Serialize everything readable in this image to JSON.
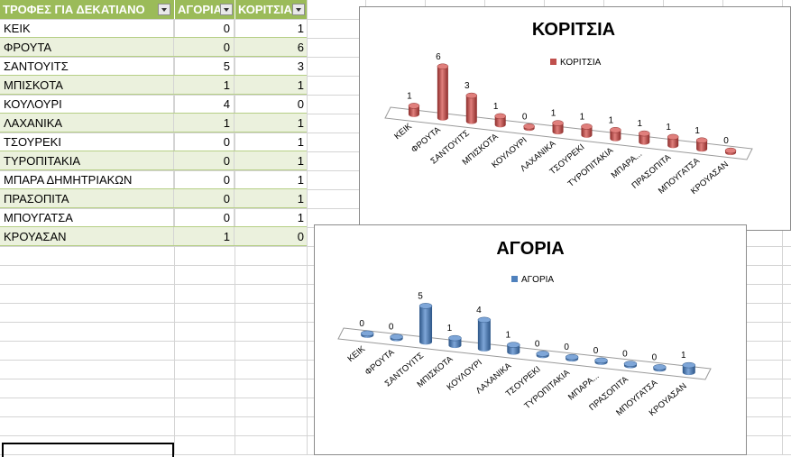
{
  "table": {
    "headers": [
      "ΤΡΟΦΕΣ ΓΙΑ ΔΕΚΑΤΙΑΝΟ",
      "ΑΓΟΡΙΑ",
      "ΚΟΡΙΤΣΙΑ"
    ],
    "rows": [
      {
        "food": "ΚΕΙΚ",
        "boys": "0",
        "girls": "1"
      },
      {
        "food": "ΦΡΟΥΤΑ",
        "boys": "0",
        "girls": "6"
      },
      {
        "food": "ΣΑΝΤΟΥΙΤΣ",
        "boys": "5",
        "girls": "3"
      },
      {
        "food": "ΜΠΙΣΚΟΤΑ",
        "boys": "1",
        "girls": "1"
      },
      {
        "food": "ΚΟΥΛΟΥΡΙ",
        "boys": "4",
        "girls": "0"
      },
      {
        "food": "ΛΑΧΑΝΙΚΑ",
        "boys": "1",
        "girls": "1"
      },
      {
        "food": "ΤΣΟΥΡΕΚΙ",
        "boys": "0",
        "girls": "1"
      },
      {
        "food": "ΤΥΡΟΠΙΤΑΚΙΑ",
        "boys": "0",
        "girls": "1"
      },
      {
        "food": "ΜΠΑΡΑ ΔΗΜΗΤΡΙΑΚΩΝ",
        "boys": "0",
        "girls": "1"
      },
      {
        "food": "ΠΡΑΣΟΠΙΤΑ",
        "boys": "0",
        "girls": "1"
      },
      {
        "food": "ΜΠΟΥΓΑΤΣΑ",
        "boys": "0",
        "girls": "1"
      },
      {
        "food": "ΚΡΟΥΑΣΑΝ",
        "boys": "1",
        "girls": "0"
      }
    ]
  },
  "colors": {
    "header_bg": "#9bbb59",
    "band": "#ebf1dd",
    "girls": "#c0504d",
    "boys": "#4f81bd"
  },
  "chart_data": [
    {
      "type": "bar",
      "title": "ΚΟΡΙΤΣΙΑ",
      "legend": "ΚΟΡΙΤΣΙΑ",
      "legend_position": "top",
      "categories": [
        "ΚΕΙΚ",
        "ΦΡΟΥΤΑ",
        "ΣΑΝΤΟΥΙΤΣ",
        "ΜΠΙΣΚΟΤΑ",
        "ΚΟΥΛΟΥΡΙ",
        "ΛΑΧΑΝΙΚΑ",
        "ΤΣΟΥΡΕΚΙ",
        "ΤΥΡΟΠΙΤΑΚΙΑ",
        "ΜΠΑΡΑ...",
        "ΠΡΑΣΟΠΙΤΑ",
        "ΜΠΟΥΓΑΤΣΑ",
        "ΚΡΟΥΑΣΑΝ"
      ],
      "values": [
        1,
        6,
        3,
        1,
        0,
        1,
        1,
        1,
        1,
        1,
        1,
        0
      ],
      "color": "#c0504d"
    },
    {
      "type": "bar",
      "title": "ΑΓΟΡΙΑ",
      "legend": "ΑΓΟΡΙΑ",
      "legend_position": "top",
      "categories": [
        "ΚΕΙΚ",
        "ΦΡΟΥΤΑ",
        "ΣΑΝΤΟΥΙΤΣ",
        "ΜΠΙΣΚΟΤΑ",
        "ΚΟΥΛΟΥΡΙ",
        "ΛΑΧΑΝΙΚΑ",
        "ΤΣΟΥΡΕΚΙ",
        "ΤΥΡΟΠΙΤΑΚΙΑ",
        "ΜΠΑΡΑ...",
        "ΠΡΑΣΟΠΙΤΑ",
        "ΜΠΟΥΓΑΤΣΑ",
        "ΚΡΟΥΑΣΑΝ"
      ],
      "values": [
        0,
        0,
        5,
        1,
        4,
        1,
        0,
        0,
        0,
        0,
        0,
        1
      ],
      "color": "#4f81bd"
    }
  ]
}
